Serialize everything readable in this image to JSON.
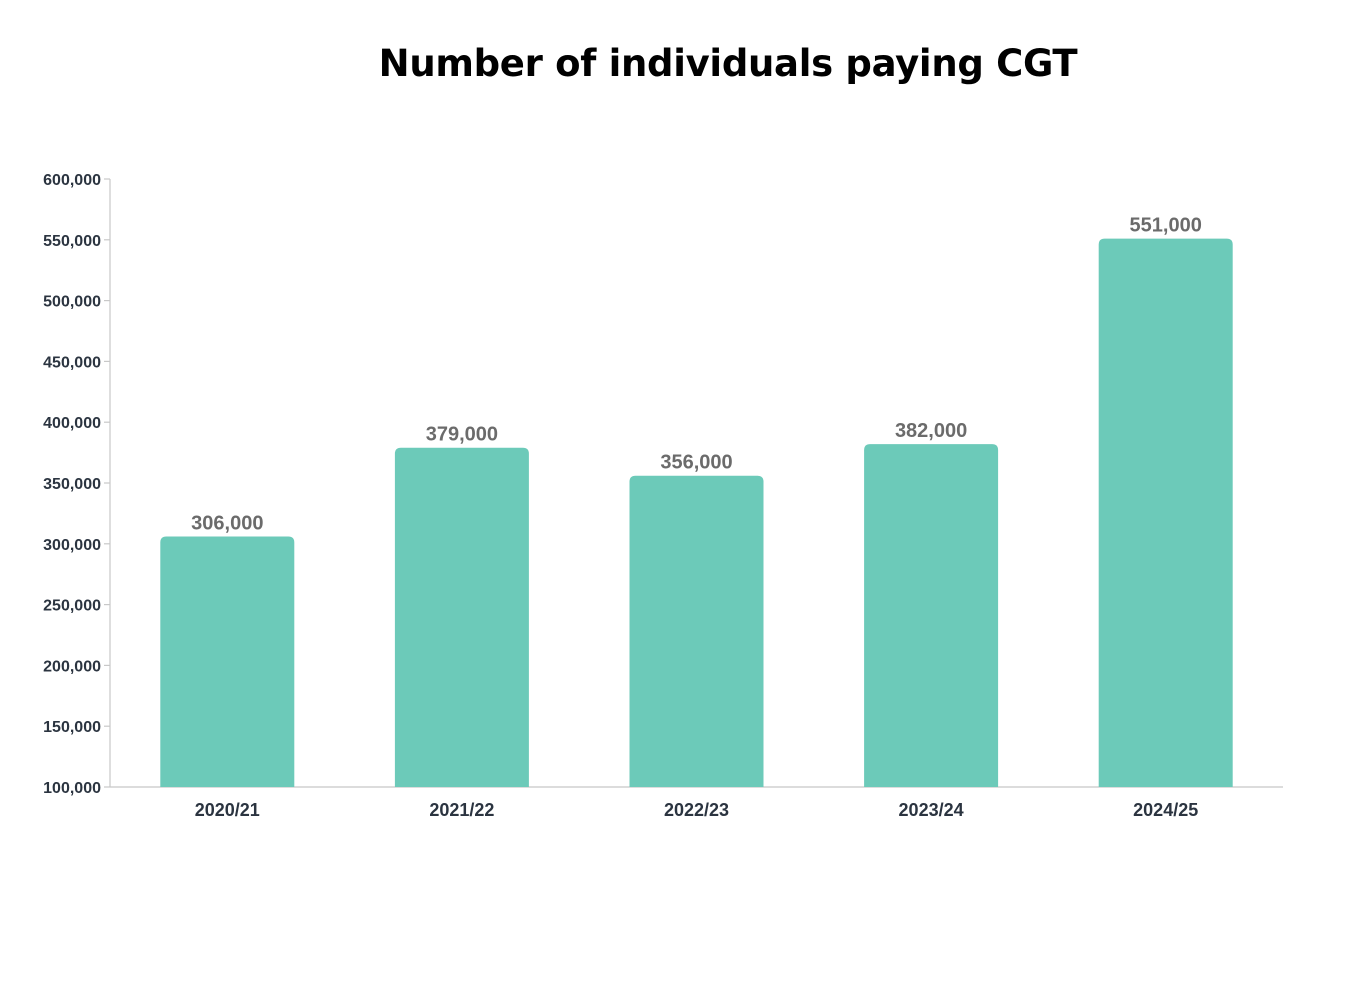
{
  "chart_data": {
    "type": "bar",
    "title": "Number of individuals paying CGT",
    "xlabel": "",
    "ylabel": "",
    "categories": [
      "2020/21",
      "2021/22",
      "2022/23",
      "2023/24",
      "2024/25"
    ],
    "values": [
      306000,
      379000,
      356000,
      382000,
      551000
    ],
    "data_labels": [
      "306,000",
      "379,000",
      "356,000",
      "382,000",
      "551,000"
    ],
    "ylim": [
      100000,
      600000
    ],
    "y_ticks": [
      100000,
      150000,
      200000,
      250000,
      300000,
      350000,
      400000,
      450000,
      500000,
      550000,
      600000
    ],
    "y_tick_labels": [
      "100,000",
      "150,000",
      "200,000",
      "250,000",
      "300,000",
      "350,000",
      "400,000",
      "450,000",
      "500,000",
      "550,000",
      "600,000"
    ],
    "grid": false,
    "legend": "none",
    "bar_color": "#6ccab9",
    "axis_color": "#c8c8c8"
  }
}
